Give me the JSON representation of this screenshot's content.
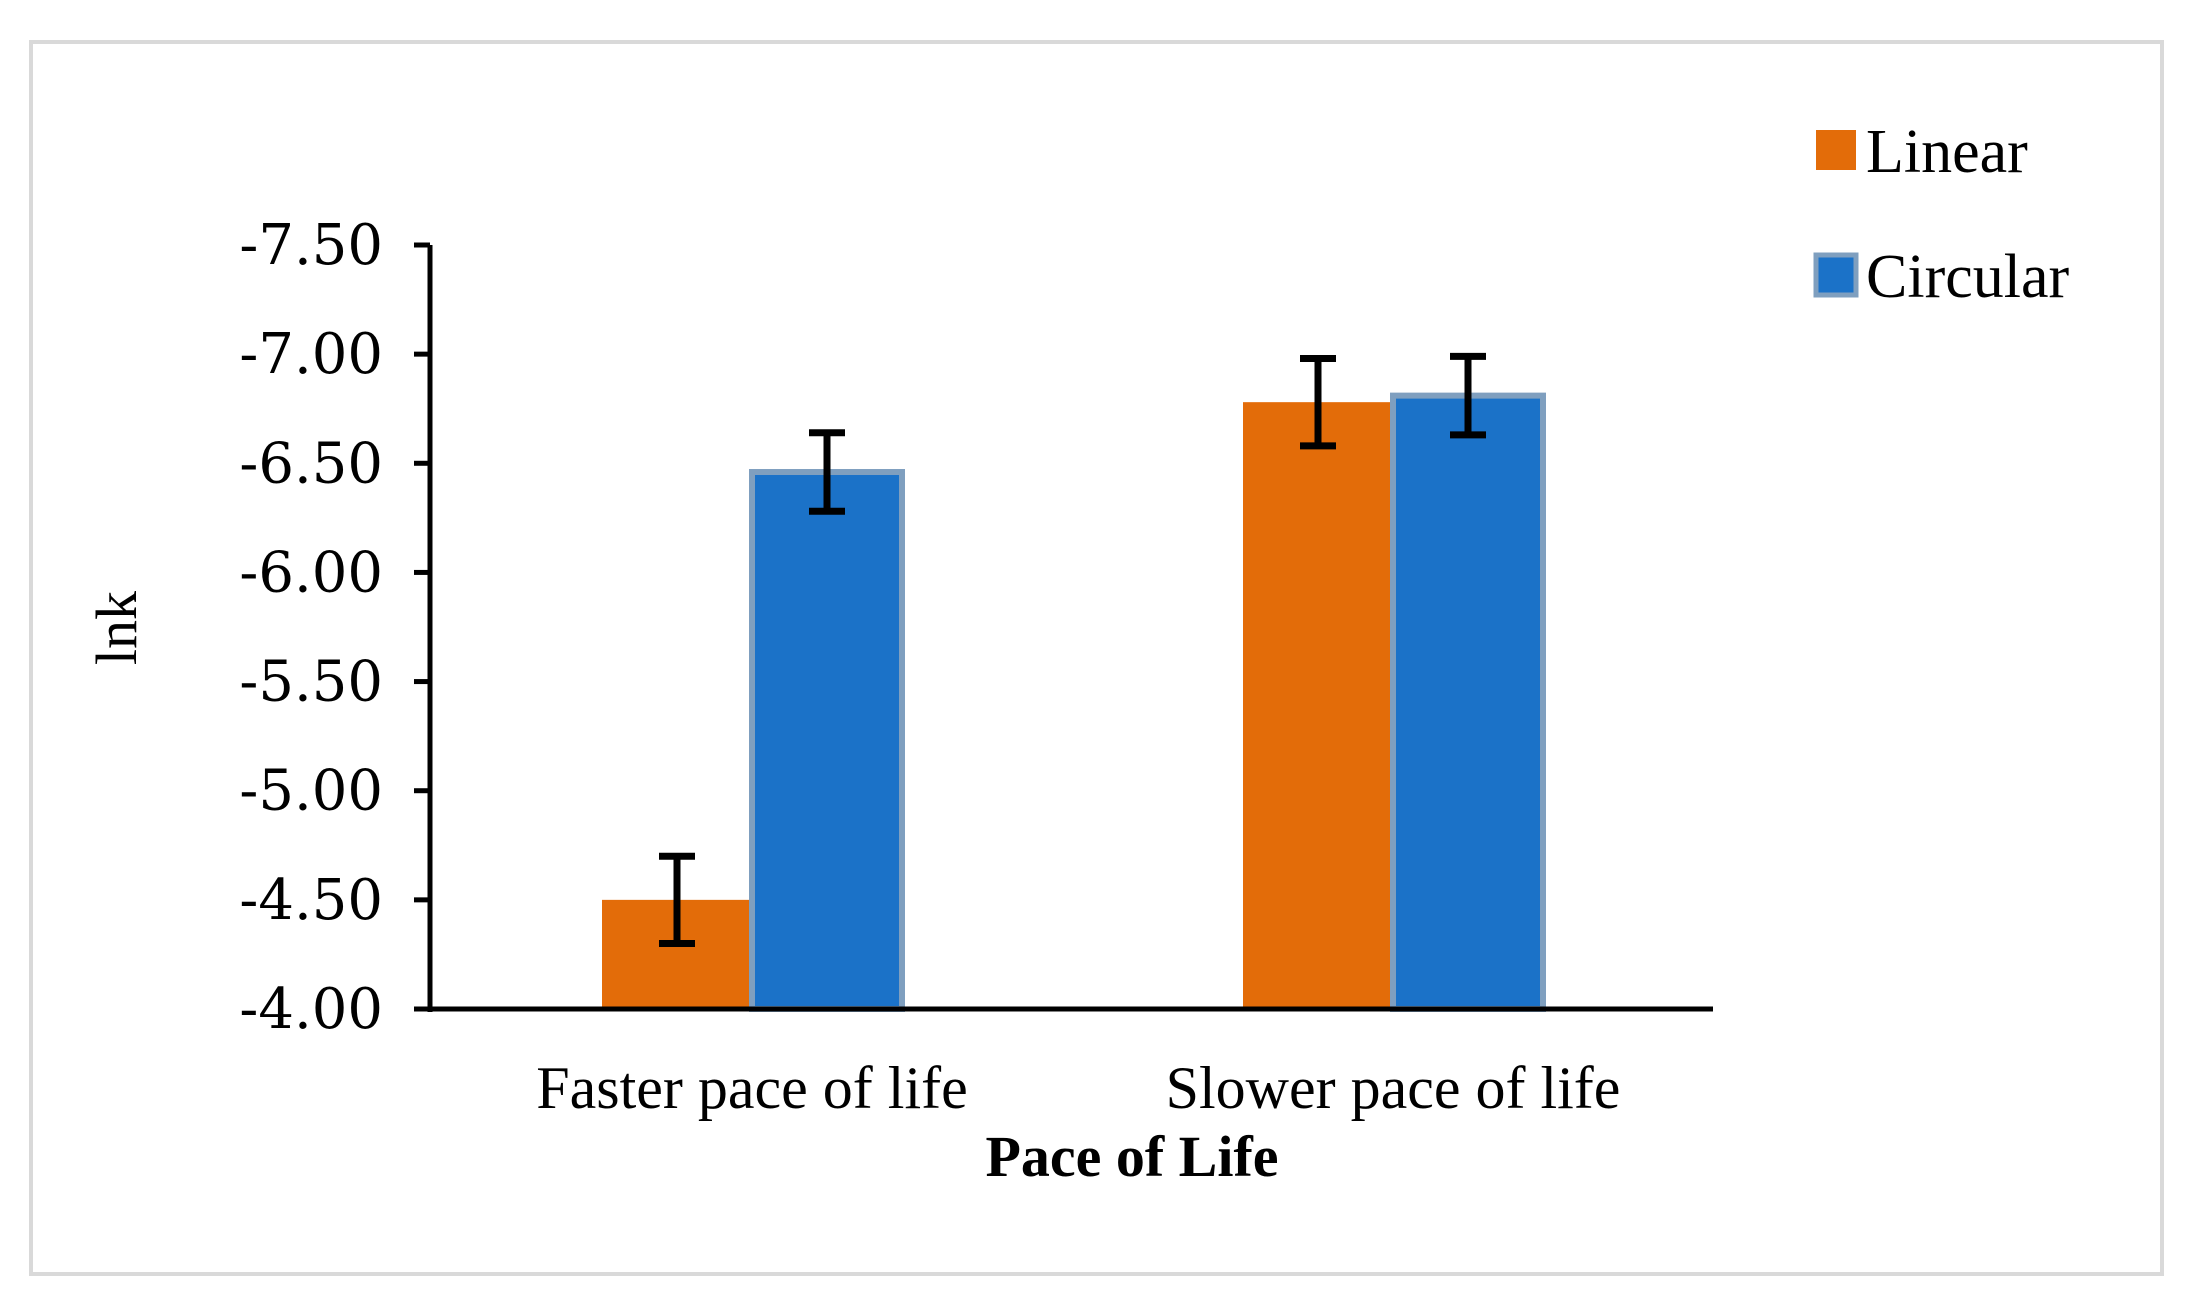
{
  "chart_data": {
    "type": "bar",
    "title": "",
    "xlabel": "Pace of Life",
    "ylabel": "lnk",
    "categories": [
      "Faster pace of life",
      "Slower pace of life"
    ],
    "series": [
      {
        "name": "Linear",
        "color": "#e36c09",
        "values": [
          -4.5,
          -6.78
        ],
        "errors": [
          0.2,
          0.2
        ]
      },
      {
        "name": "Circular",
        "color": "#1b72c8",
        "edge": "#7f9fbf",
        "values": [
          -6.46,
          -6.81
        ],
        "errors": [
          0.18,
          0.18
        ]
      }
    ],
    "ylim": [
      -4.0,
      -7.5
    ],
    "yticks": [
      -4.0,
      -4.5,
      -5.0,
      -5.5,
      -6.0,
      -6.5,
      -7.0,
      -7.5
    ],
    "ytick_labels": [
      "-4.00",
      "-4.50",
      "-5.00",
      "-5.50",
      "-6.00",
      "-6.50",
      "-7.00",
      "-7.50"
    ],
    "legend_position": "top-right",
    "grid": false
  }
}
